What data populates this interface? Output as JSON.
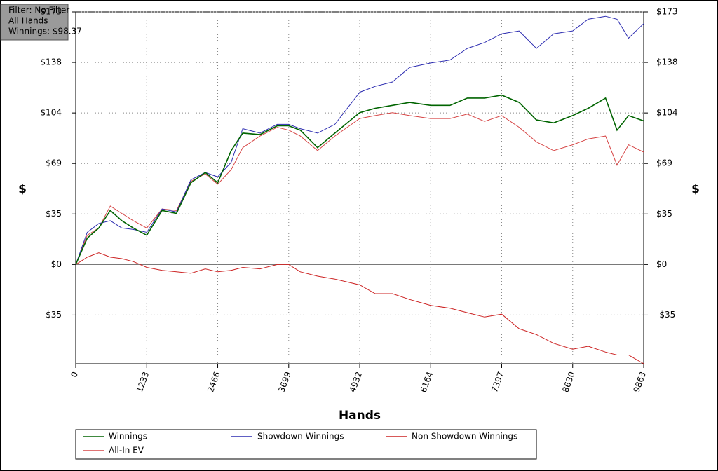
{
  "chart_data": {
    "type": "line",
    "info_box": [
      "Filter: No Filter",
      "All Hands",
      "Winnings: $98.37"
    ],
    "x_label": "Hands",
    "y_label": "$",
    "x": [
      0,
      200,
      400,
      600,
      800,
      1000,
      1233,
      1500,
      1750,
      2000,
      2250,
      2466,
      2700,
      2900,
      3200,
      3500,
      3699,
      3900,
      4200,
      4500,
      4932,
      5200,
      5500,
      5800,
      6164,
      6500,
      6800,
      7100,
      7397,
      7700,
      8000,
      8300,
      8630,
      8900,
      9200,
      9400,
      9600,
      9863
    ],
    "series": [
      {
        "name": "Winnings",
        "color": "#006400",
        "values": [
          0,
          18,
          25,
          37,
          30,
          25,
          20,
          37,
          35,
          56,
          63,
          56,
          78,
          90,
          89,
          95,
          95,
          92,
          80,
          90,
          104,
          107,
          109,
          111,
          109,
          109,
          114,
          114,
          116,
          111,
          99,
          97,
          102,
          107,
          114,
          92,
          102,
          98.37
        ]
      },
      {
        "name": "Showdown Winnings",
        "color": "#2b2bb0",
        "values": [
          0,
          22,
          28,
          30,
          25,
          24,
          22,
          38,
          36,
          58,
          63,
          60,
          70,
          93,
          90,
          96,
          96,
          93,
          90,
          96,
          118,
          122,
          125,
          135,
          138,
          140,
          148,
          152,
          158,
          160,
          148,
          158,
          160,
          168,
          170,
          168,
          155,
          165
        ]
      },
      {
        "name": "Non Showdown Winnings",
        "color": "#cc2222",
        "values": [
          0,
          5,
          8,
          5,
          4,
          2,
          -2,
          -4,
          -5,
          -6,
          -3,
          -5,
          -4,
          -2,
          -3,
          0,
          0,
          -5,
          -8,
          -10,
          -14,
          -20,
          -20,
          -24,
          -28,
          -30,
          -33,
          -36,
          -34,
          -44,
          -48,
          -54,
          -58,
          -56,
          -60,
          -62,
          -62,
          -68
        ]
      },
      {
        "name": "All-In EV",
        "color": "#d64545",
        "values": [
          0,
          20,
          25,
          40,
          35,
          30,
          25,
          38,
          37,
          57,
          62,
          55,
          65,
          80,
          88,
          94,
          92,
          88,
          78,
          88,
          100,
          102,
          104,
          102,
          100,
          100,
          103,
          98,
          102,
          94,
          84,
          78,
          82,
          86,
          88,
          68,
          82,
          77
        ]
      }
    ],
    "xlim": [
      0,
      9863
    ],
    "xticks": [
      0,
      1233,
      2466,
      3699,
      4932,
      6164,
      7397,
      8630,
      9863
    ],
    "ylim": [
      -68,
      173
    ],
    "yticks": [
      {
        "value": -34.6,
        "label": "-$35"
      },
      {
        "value": 0,
        "label": "$0"
      },
      {
        "value": 34.6,
        "label": "$35"
      },
      {
        "value": 69.2,
        "label": "$69"
      },
      {
        "value": 103.8,
        "label": "$104"
      },
      {
        "value": 138.4,
        "label": "$138"
      },
      {
        "value": 173,
        "label": "$173"
      }
    ],
    "grid": true
  }
}
